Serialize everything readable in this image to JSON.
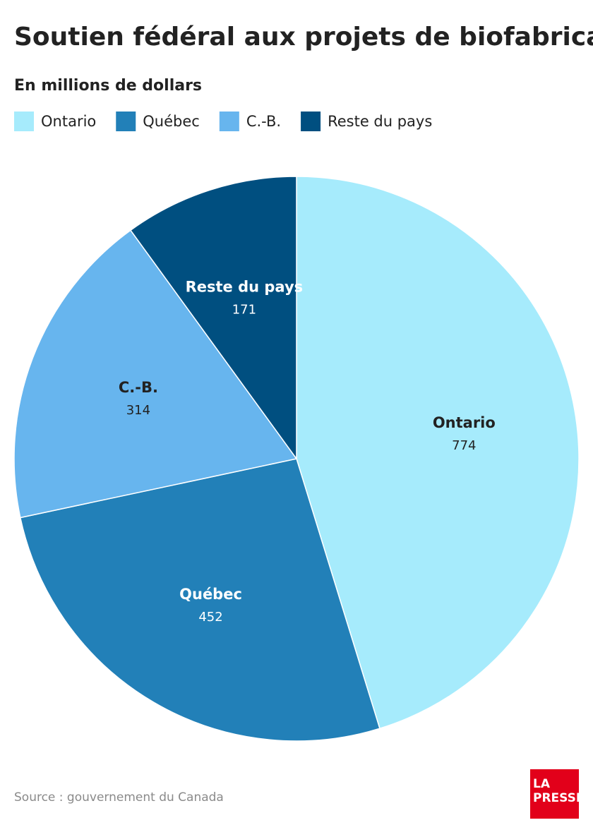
{
  "chart_data": {
    "type": "pie",
    "title": "Soutien fédéral aux projets de biofabrication",
    "subtitle": "En millions de dollars",
    "categories": [
      "Ontario",
      "Québec",
      "C.-B.",
      "Reste du pays"
    ],
    "values": [
      774,
      452,
      314,
      171
    ],
    "colors": [
      "#a6ebfc",
      "#2280b8",
      "#67b5ee",
      "#004f80"
    ],
    "label_colors": [
      "#222222",
      "#ffffff",
      "#222222",
      "#ffffff"
    ],
    "source": "Source : gouvernement du Canada",
    "logo": [
      "LA",
      "PRESSE"
    ]
  }
}
